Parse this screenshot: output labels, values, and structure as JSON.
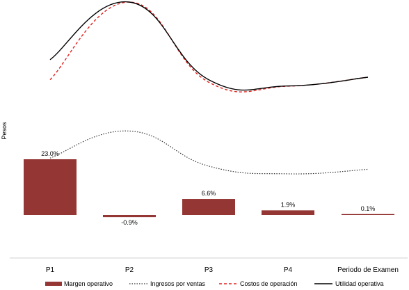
{
  "chart_data": {
    "type": "bar+line",
    "ylabel": "Pesos",
    "categories": [
      "P1",
      "P2",
      "P3",
      "P4",
      "Periodo de Examen"
    ],
    "bars": {
      "name": "Margen operativo",
      "values": [
        23.0,
        -0.9,
        6.6,
        1.9,
        0.1
      ],
      "labels": [
        "23.0%",
        "-0.9%",
        "6.6%",
        "1.9%",
        "0.1%"
      ],
      "color": "#943634"
    },
    "lines": [
      {
        "name": "Ingresos por ventas",
        "values": [
          22.7,
          33.5,
          19.5,
          16.4,
          18.2
        ],
        "color": "#333333",
        "style": "dotted"
      },
      {
        "name": "Costos de operación",
        "values": [
          54.0,
          85.0,
          53.0,
          51.4,
          55.0
        ],
        "color": "#e0201c",
        "style": "dashed"
      },
      {
        "name": "Utilidad operativa",
        "values": [
          62.0,
          85.0,
          54.0,
          51.5,
          55.0
        ],
        "color": "#000000",
        "style": "solid"
      }
    ],
    "legend_position": "bottom",
    "grid": false
  }
}
